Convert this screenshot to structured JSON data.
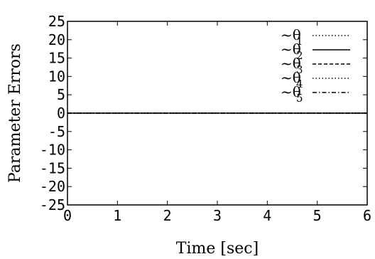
{
  "chart_data": {
    "type": "line",
    "title": "",
    "xlabel": "Time [sec]",
    "ylabel": "Parameter Errors",
    "xlim": [
      0,
      6
    ],
    "ylim": [
      -25,
      25
    ],
    "xticks": [
      0,
      1,
      2,
      3,
      4,
      5,
      6
    ],
    "yticks": [
      25,
      20,
      15,
      10,
      5,
      0,
      -5,
      -10,
      -15,
      -20,
      -25
    ],
    "grid": false,
    "legend_position": "top-right",
    "x": [
      0,
      1,
      2,
      3,
      4,
      5,
      6
    ],
    "series": [
      {
        "name": "~θ1",
        "symbol": "~θ",
        "subscript": "1",
        "style": "dotted",
        "values": [
          0,
          0,
          0,
          0,
          0,
          0,
          0
        ]
      },
      {
        "name": "~θ2",
        "symbol": "~θ",
        "subscript": "2",
        "style": "solid",
        "values": [
          0,
          0,
          0,
          0,
          0,
          0,
          0
        ]
      },
      {
        "name": "~θ3",
        "symbol": "~θ",
        "subscript": "3",
        "style": "dashed",
        "values": [
          0,
          0,
          0,
          0,
          0,
          0,
          0
        ]
      },
      {
        "name": "~θ4",
        "symbol": "~θ",
        "subscript": "4",
        "style": "dotted",
        "values": [
          0,
          0,
          0,
          0,
          0,
          0,
          0
        ]
      },
      {
        "name": "~θ5",
        "symbol": "~θ",
        "subscript": "5",
        "style": "dashdot",
        "values": [
          0,
          0,
          0,
          0,
          0,
          0,
          0
        ]
      }
    ],
    "colors": {
      "line": "#000000",
      "axes": "#000000",
      "background": "#ffffff"
    }
  }
}
